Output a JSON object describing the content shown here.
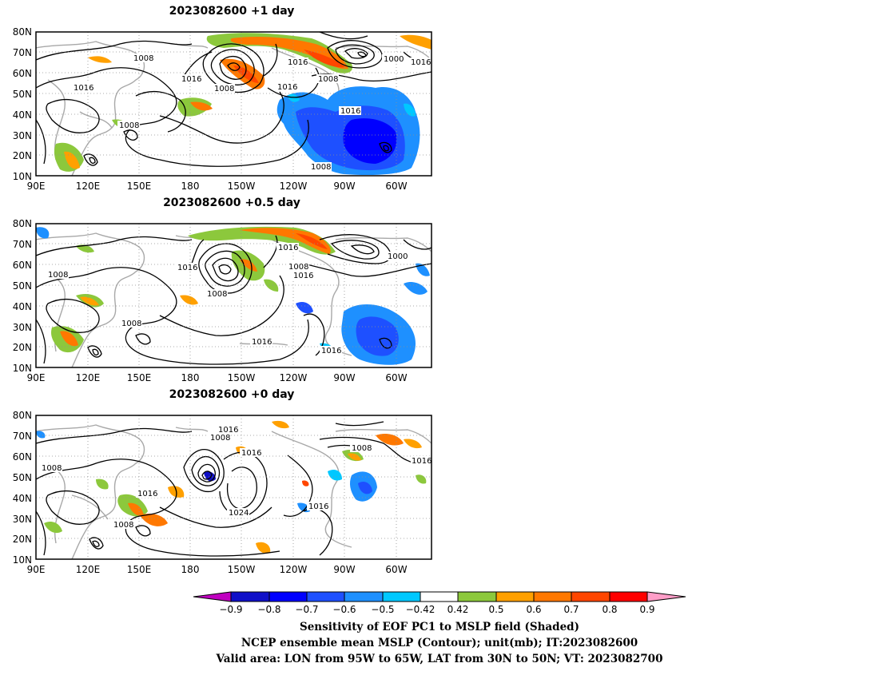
{
  "panels": [
    {
      "title": "2023082600  +1 day",
      "contour_labels": [
        "1008",
        "1016",
        "1016",
        "1008",
        "1016",
        "1016",
        "1008",
        "1000",
        "1016",
        "1016",
        "1008",
        "1008"
      ]
    },
    {
      "title": "2023082600  +0.5 day",
      "contour_labels": [
        "1008",
        "1016",
        "1008",
        "1016",
        "1008",
        "1016",
        "1000",
        "1008",
        "1016",
        "1016"
      ]
    },
    {
      "title": "2023082600  +0 day",
      "contour_labels": [
        "1008",
        "1016",
        "1008",
        "1016",
        "1016",
        "1024",
        "1016",
        "1008",
        "1016",
        "1008"
      ]
    }
  ],
  "axes": {
    "lat_ticks": [
      "80N",
      "70N",
      "60N",
      "50N",
      "40N",
      "30N",
      "20N",
      "10N"
    ],
    "lon_ticks": [
      "90E",
      "120E",
      "150E",
      "180",
      "150W",
      "120W",
      "90W",
      "60W"
    ]
  },
  "colorbar": {
    "labels": [
      "−0.9",
      "−0.8",
      "−0.7",
      "−0.6",
      "−0.5",
      "−0.42",
      "0.42",
      "0.5",
      "0.6",
      "0.7",
      "0.8",
      "0.9"
    ],
    "colors": [
      "#c000c0",
      "#1010c8",
      "#0000ff",
      "#1e50ff",
      "#1e90ff",
      "#00c8ff",
      "#ffffff",
      "#8cc83c",
      "#ffa000",
      "#ff7800",
      "#ff4600",
      "#ff0000",
      "#ff9ec8"
    ]
  },
  "caption": {
    "line1": "Sensitivity of EOF PC1 to MSLP field (Shaded)",
    "line2": "NCEP ensemble mean MSLP (Contour); unit(mb); IT:2023082600",
    "line3": "Valid area: LON from 95W to 65W, LAT from 30N to 50N; VT: 2023082700"
  }
}
